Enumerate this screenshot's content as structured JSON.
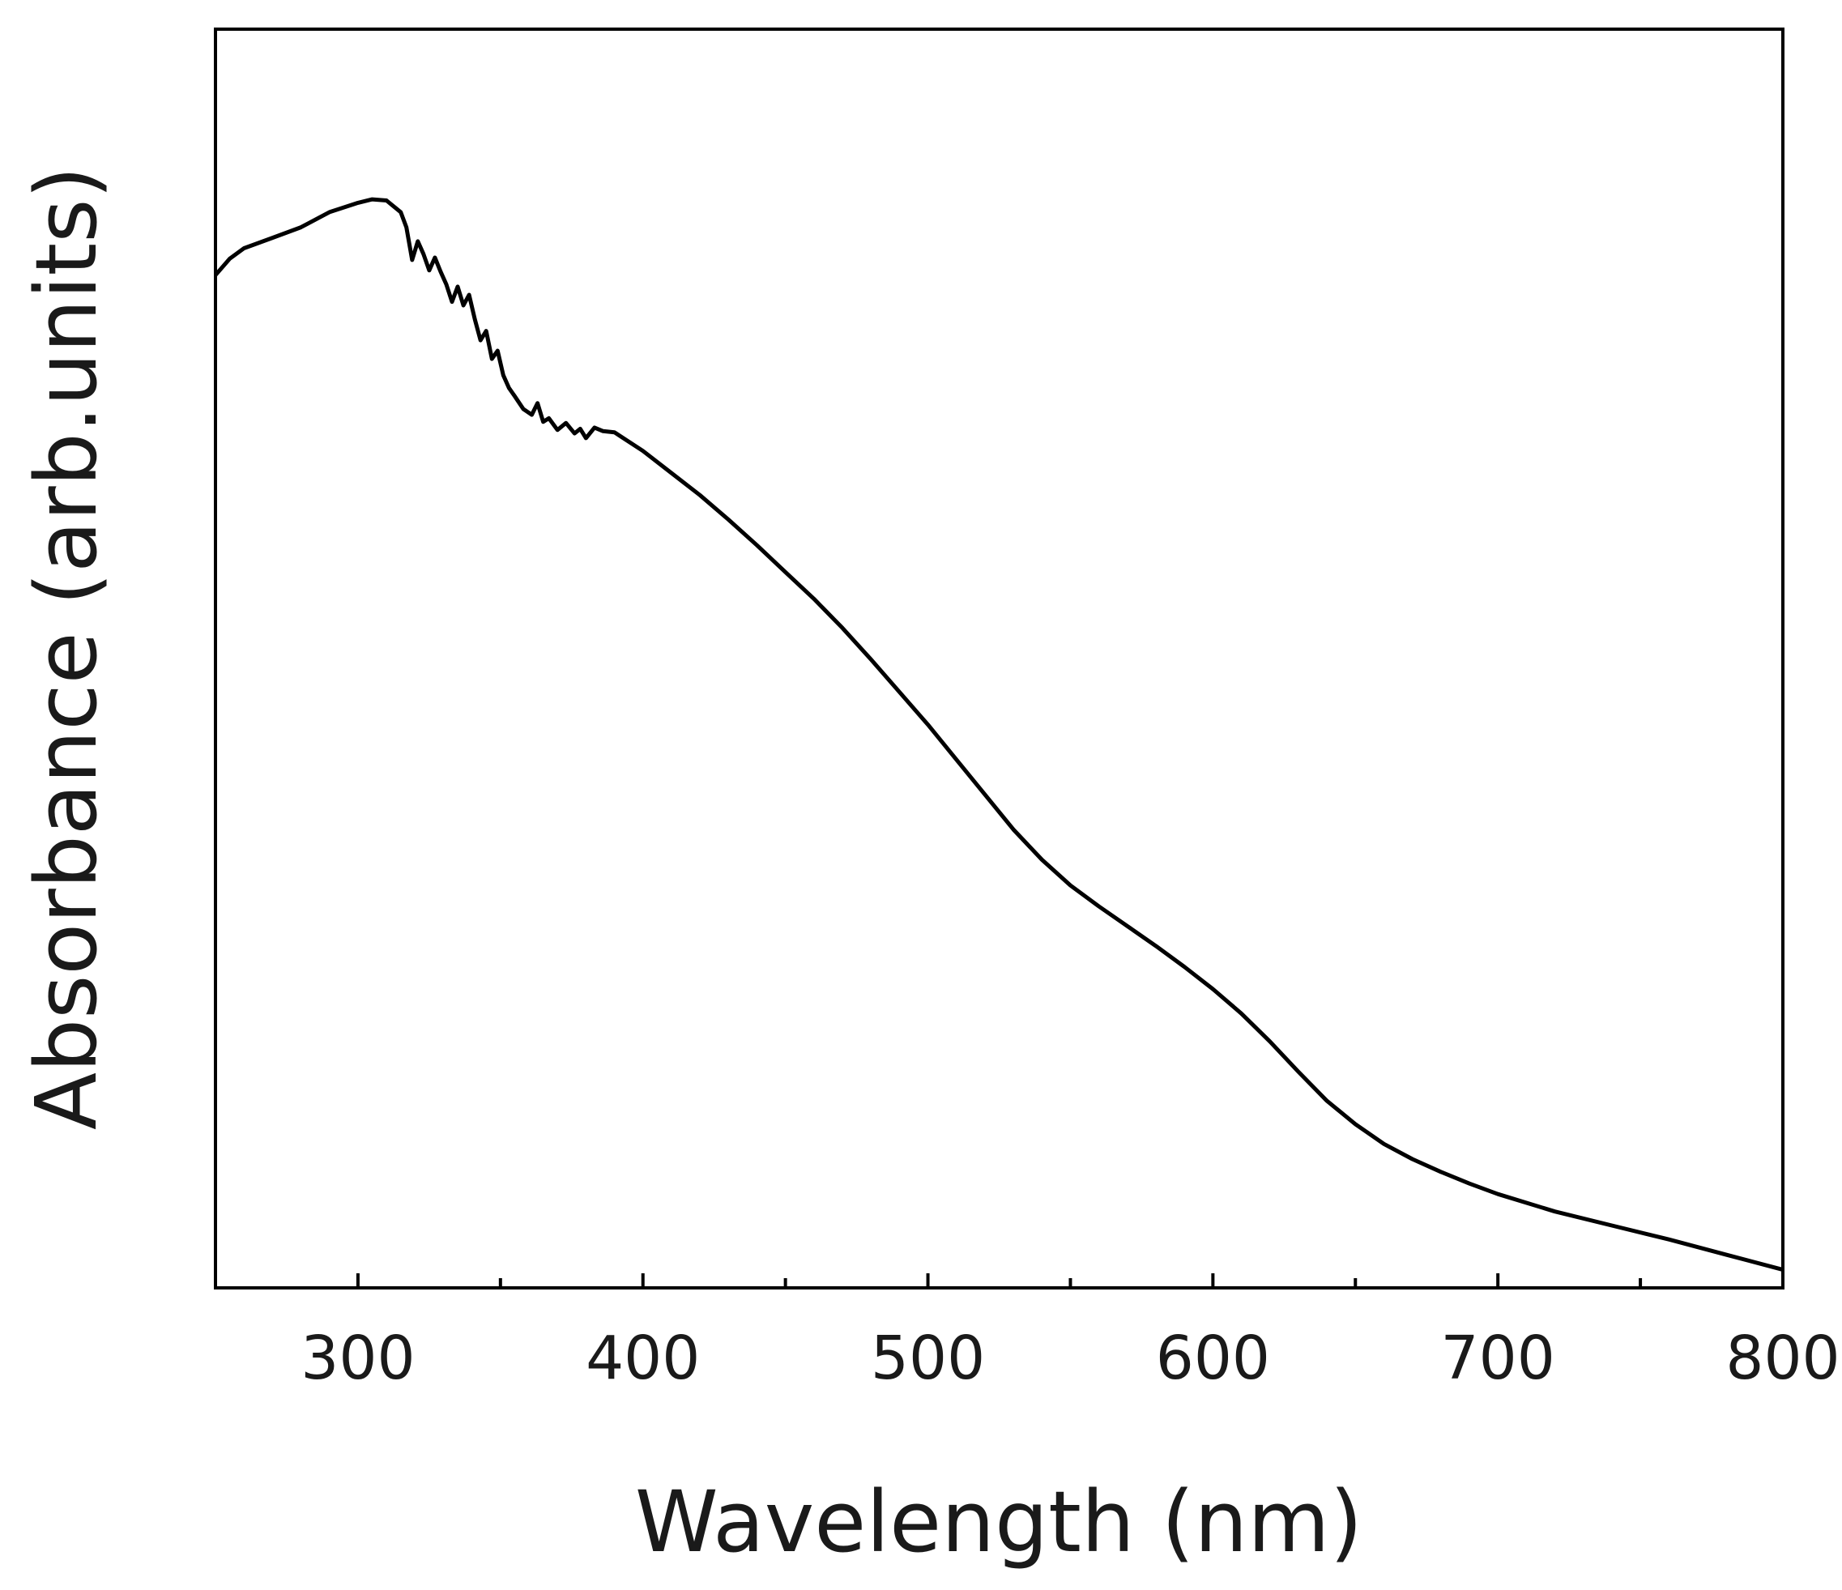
{
  "chart_data": {
    "type": "line",
    "title": "",
    "xlabel": "Wavelength (nm)",
    "ylabel": "Absorbance (arb.units)",
    "xlim": [
      250,
      800
    ],
    "ylim": [
      0,
      1
    ],
    "x_ticks": [
      300,
      400,
      500,
      600,
      700,
      800
    ],
    "x_minor_ticks": [
      350,
      450,
      550,
      650,
      750
    ],
    "y_tick_labels_shown": false,
    "grid": false,
    "series": [
      {
        "name": "Absorbance",
        "color": "#000000",
        "x": [
          250,
          255,
          260,
          270,
          280,
          290,
          300,
          305,
          310,
          315,
          317,
          319,
          321,
          323,
          325,
          327,
          329,
          331,
          333,
          335,
          337,
          339,
          341,
          343,
          345,
          347,
          349,
          351,
          353,
          355,
          358,
          361,
          363,
          365,
          367,
          370,
          373,
          376,
          378,
          380,
          383,
          386,
          390,
          400,
          410,
          420,
          430,
          440,
          450,
          460,
          470,
          480,
          490,
          500,
          510,
          520,
          530,
          540,
          550,
          560,
          570,
          580,
          590,
          600,
          610,
          620,
          630,
          640,
          650,
          660,
          670,
          680,
          690,
          700,
          720,
          740,
          760,
          780,
          800
        ],
        "y": [
          0.864,
          0.878,
          0.887,
          0.896,
          0.905,
          0.918,
          0.926,
          0.929,
          0.928,
          0.918,
          0.905,
          0.877,
          0.893,
          0.882,
          0.868,
          0.879,
          0.867,
          0.856,
          0.841,
          0.854,
          0.838,
          0.847,
          0.826,
          0.808,
          0.816,
          0.792,
          0.799,
          0.778,
          0.767,
          0.76,
          0.749,
          0.744,
          0.754,
          0.738,
          0.741,
          0.731,
          0.737,
          0.728,
          0.732,
          0.724,
          0.733,
          0.73,
          0.729,
          0.713,
          0.694,
          0.675,
          0.654,
          0.632,
          0.609,
          0.586,
          0.561,
          0.534,
          0.506,
          0.478,
          0.448,
          0.418,
          0.388,
          0.362,
          0.34,
          0.322,
          0.305,
          0.288,
          0.27,
          0.251,
          0.23,
          0.206,
          0.18,
          0.155,
          0.135,
          0.118,
          0.105,
          0.094,
          0.084,
          0.075,
          0.06,
          0.048,
          0.036,
          0.023,
          0.01
        ]
      }
    ]
  }
}
